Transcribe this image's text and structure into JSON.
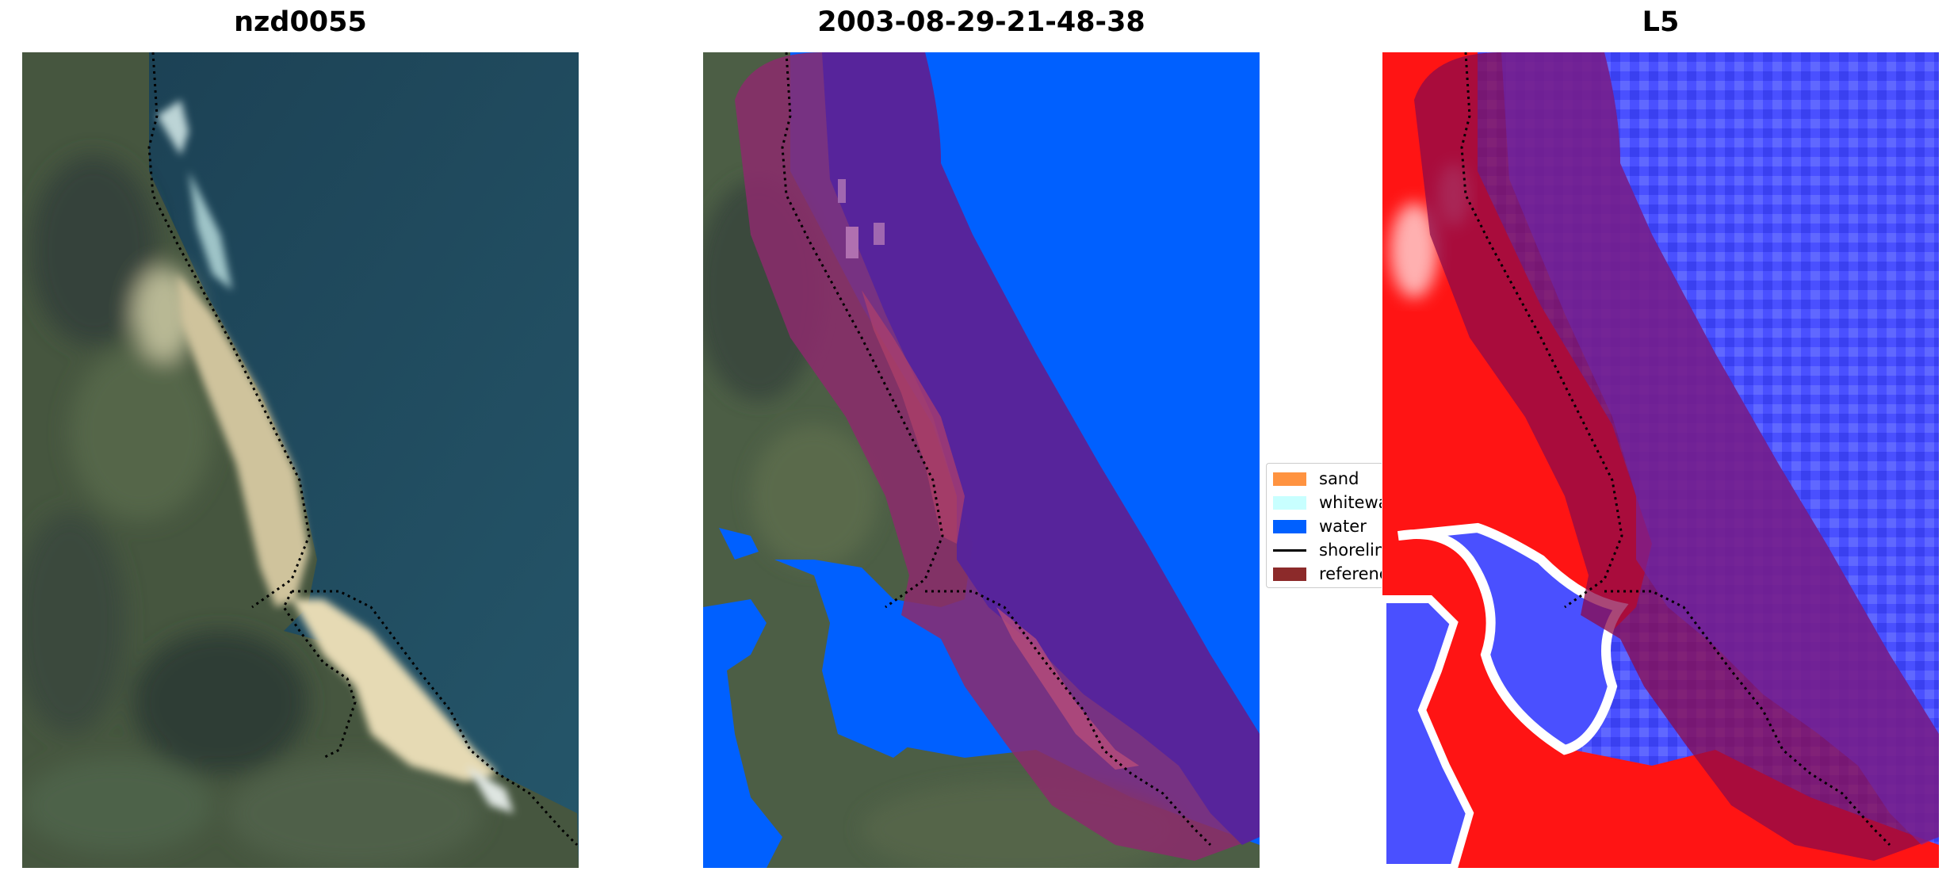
{
  "panels": [
    {
      "title": "nzd0055"
    },
    {
      "title": "2003-08-29-21-48-38"
    },
    {
      "title": "L5"
    }
  ],
  "legend": {
    "items": [
      {
        "label": "sand",
        "color": "#ff9340"
      },
      {
        "label": "whitewater",
        "color": "#c8ffff"
      },
      {
        "label": "water",
        "color": "#0060ff"
      },
      {
        "label": "shoreline",
        "color": "#000000"
      },
      {
        "label": "reference",
        "color": "#8c2a2a"
      }
    ]
  },
  "colors": {
    "water_class": "#0060ff",
    "reference_buffer": "#8c2a2a",
    "sea": "#1f4a5a",
    "land": "#4a5a40",
    "sand": "#d8ccaa",
    "index_positive": "#ff1010",
    "index_negative": "#3040ff"
  }
}
